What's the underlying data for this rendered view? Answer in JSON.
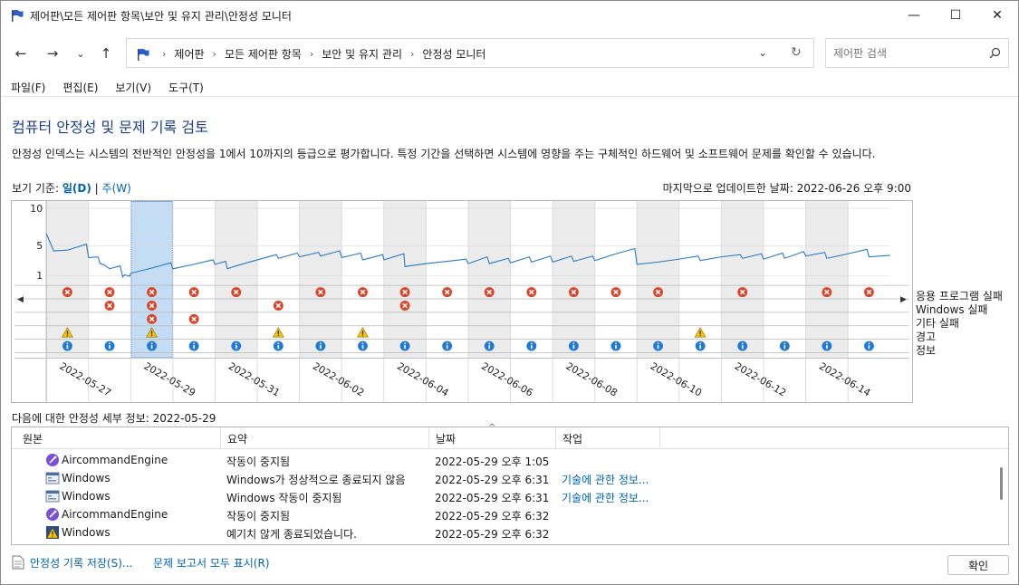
{
  "window": {
    "title": "제어판\\모든 제어판 항목\\보안 및 유지 관리\\안정성 모니터",
    "controls": {
      "minimize": "—",
      "maximize": "☐",
      "close": "✕"
    }
  },
  "nav": {
    "back": "←",
    "forward": "→",
    "recent": "⌄",
    "up": "↑",
    "dropdown": "⌄",
    "refresh": "↻"
  },
  "address": {
    "crumbs": [
      "제어판",
      "모든 제어판 항목",
      "보안 및 유지 관리",
      "안정성 모니터"
    ]
  },
  "search": {
    "placeholder": "제어판 검색"
  },
  "menu": [
    "파일(F)",
    "편집(E)",
    "보기(V)",
    "도구(T)"
  ],
  "page": {
    "title": "컴퓨터 안정성 및 문제 기록 검토",
    "description": "안정성 인덱스는 시스템의 전반적인 안정성을 1에서 10까지의 등급으로 평가합니다. 특정 기간을 선택하면 시스템에 영향을 주는 구체적인 하드웨어 및 소프트웨어 문제를 확인할 수 있습니다.",
    "view_by_label": "보기 기준:",
    "view_day": "일(D)",
    "view_separator": "|",
    "view_week": "주(W)",
    "last_updated": "마지막으로 업데이트한 날짜: 2022-06-26 오후 9:00"
  },
  "chart_data": {
    "type": "line",
    "y_ticks": [
      "10",
      "5",
      "1"
    ],
    "ylim": [
      1,
      10
    ],
    "selected_index": 2,
    "date_labels": [
      "2022-05-27",
      "2022-05-29",
      "2022-05-31",
      "2022-06-02",
      "2022-06-04",
      "2022-06-06",
      "2022-06-08",
      "2022-06-10",
      "2022-06-12",
      "2022-06-14"
    ],
    "index_points": [
      [
        0,
        6.6
      ],
      [
        0.35,
        4.3
      ],
      [
        1,
        4.4
      ],
      [
        1.9,
        5.2
      ],
      [
        2,
        3.4
      ],
      [
        2.45,
        3.5
      ],
      [
        2.55,
        2.6
      ],
      [
        2.75,
        2.4
      ],
      [
        3,
        1.9
      ],
      [
        3.5,
        2.3
      ],
      [
        3.62,
        0.8
      ],
      [
        3.7,
        1.1
      ],
      [
        3.95,
        0.9
      ],
      [
        4,
        1.3
      ],
      [
        5,
        2.0
      ],
      [
        5.9,
        2.7
      ],
      [
        6,
        1.9
      ],
      [
        7,
        2.5
      ],
      [
        7.9,
        3.1
      ],
      [
        8,
        2.5
      ],
      [
        8.5,
        2.9
      ],
      [
        8.58,
        1.9
      ],
      [
        9,
        2.3
      ],
      [
        10,
        3.1
      ],
      [
        10.9,
        3.8
      ],
      [
        11,
        3.3
      ],
      [
        11.9,
        4.0
      ],
      [
        12,
        3.5
      ],
      [
        12.9,
        4.1
      ],
      [
        13,
        3.6
      ],
      [
        13.9,
        4.3
      ],
      [
        14,
        3.4
      ],
      [
        14.9,
        4.0
      ],
      [
        15,
        3.1
      ],
      [
        15.95,
        3.8
      ],
      [
        16,
        3.1
      ],
      [
        16.95,
        3.9
      ],
      [
        17,
        2.2
      ],
      [
        18,
        2.6
      ],
      [
        19,
        2.9
      ],
      [
        19.9,
        3.2
      ],
      [
        20,
        2.6
      ],
      [
        20.9,
        3.5
      ],
      [
        21,
        2.6
      ],
      [
        21.9,
        3.3
      ],
      [
        22,
        2.7
      ],
      [
        22.9,
        3.5
      ],
      [
        23,
        2.8
      ],
      [
        23.9,
        3.6
      ],
      [
        24,
        2.8
      ],
      [
        24.9,
        3.6
      ],
      [
        25,
        2.9
      ],
      [
        25.9,
        3.6
      ],
      [
        26,
        3.0
      ],
      [
        27,
        3.9
      ],
      [
        27.9,
        4.6
      ],
      [
        28,
        2.5
      ],
      [
        29,
        2.8
      ],
      [
        30,
        3.2
      ],
      [
        30.9,
        3.6
      ],
      [
        31,
        3.0
      ],
      [
        32,
        3.5
      ],
      [
        32.9,
        3.8
      ],
      [
        33,
        3.3
      ],
      [
        33.9,
        3.9
      ],
      [
        34,
        3.2
      ],
      [
        34.9,
        4.0
      ],
      [
        35,
        3.3
      ],
      [
        35.9,
        4.2
      ],
      [
        36,
        3.6
      ],
      [
        36.9,
        4.1
      ],
      [
        37,
        3.3
      ],
      [
        38,
        3.9
      ],
      [
        38.9,
        4.5
      ],
      [
        39,
        3.5
      ],
      [
        40,
        3.7
      ]
    ],
    "rows": [
      {
        "label": "응용 프로그램 실패",
        "kind": "error",
        "days": [
          0,
          1,
          2,
          3,
          4,
          6,
          7,
          8,
          9,
          10,
          11,
          12,
          13,
          14,
          16,
          18,
          19
        ]
      },
      {
        "label": "Windows 실패",
        "kind": "error",
        "days": [
          1,
          2,
          5,
          8
        ]
      },
      {
        "label": "기타 실패",
        "kind": "error",
        "days": [
          2,
          3
        ]
      },
      {
        "label": "경고",
        "kind": "warning",
        "days": [
          0,
          2,
          5,
          7,
          15
        ]
      },
      {
        "label": "정보",
        "kind": "info",
        "days": [
          0,
          1,
          2,
          3,
          4,
          5,
          6,
          7,
          8,
          9,
          10,
          11,
          12,
          13,
          14,
          15,
          16,
          17,
          18,
          19
        ]
      }
    ]
  },
  "details": {
    "label": "다음에 대한 안정성 세부 정보: 2022-05-29",
    "sort_glyph": "^",
    "columns": [
      "원본",
      "요약",
      "날짜",
      "작업"
    ],
    "rows": [
      {
        "icon": "app-engine-icon",
        "source": "AircommandEngine",
        "summary": "작동이 중지됨",
        "date": "2022-05-29 오후 1:05",
        "action": ""
      },
      {
        "icon": "windows-window-icon",
        "source": "Windows",
        "summary": "Windows가 정상적으로 종료되지 않음",
        "date": "2022-05-29 오후 6:31",
        "action": "기술에 관한 정보..."
      },
      {
        "icon": "windows-window-icon",
        "source": "Windows",
        "summary": "Windows 작동이 중지됨",
        "date": "2022-05-29 오후 6:31",
        "action": "기술에 관한 정보..."
      },
      {
        "icon": "app-engine-icon",
        "source": "AircommandEngine",
        "summary": "작동이 중지됨",
        "date": "2022-05-29 오후 6:32",
        "action": ""
      },
      {
        "icon": "windows-warning-icon",
        "source": "Windows",
        "summary": "예기치 않게 종료되었습니다.",
        "date": "2022-05-29 오후 6:32",
        "action": ""
      }
    ]
  },
  "footer": {
    "save_history": "안정성 기록 저장(S)...",
    "show_all": "문제 보고서 모두 표시(R)",
    "ok": "확인"
  }
}
